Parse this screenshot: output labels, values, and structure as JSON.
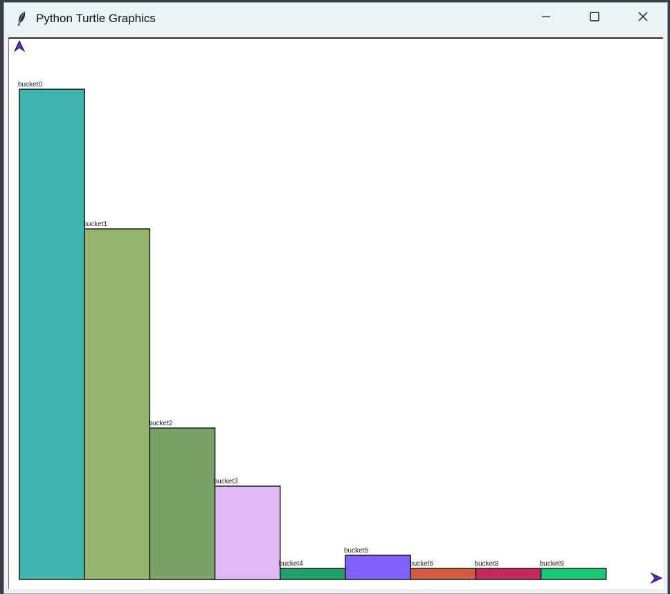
{
  "window": {
    "title": "Python Turtle Graphics",
    "icon": "feather-icon",
    "controls": [
      "minimize-icon",
      "maximize-icon",
      "close-icon"
    ]
  },
  "chart_data": {
    "type": "bar",
    "categories": [
      "bucket0",
      "bucket1",
      "bucket2",
      "bucket3",
      "bucket4",
      "bucket5",
      "bucket6",
      "bucket8",
      "bucket9"
    ],
    "values": [
      709,
      507,
      219,
      135,
      16,
      35,
      16,
      16,
      16
    ],
    "colors": [
      "#3fb3ae",
      "#93b56e",
      "#79a267",
      "#e1b8f5",
      "#21a06e",
      "#7f62fb",
      "#d45a42",
      "#c6275e",
      "#16c774"
    ],
    "title": "",
    "xlabel": "",
    "ylabel": "",
    "ylim": [
      0,
      781
    ]
  },
  "turtles": [
    "y-axis-turtle-icon",
    "x-axis-turtle-icon"
  ]
}
